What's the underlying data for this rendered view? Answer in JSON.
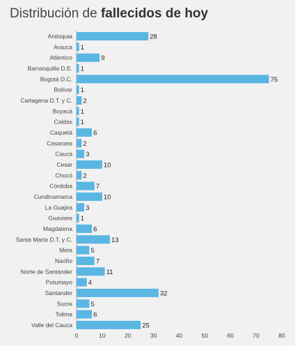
{
  "title": {
    "prefix": "Distribución de ",
    "bold": "fallecidos de hoy"
  },
  "colors": {
    "bar": "#5ab6e3",
    "background": "#f1f1f1",
    "text": "#444444",
    "axis": "#9a9a9a"
  },
  "chart_data": {
    "type": "bar",
    "orientation": "horizontal",
    "title": "Distribución de fallecidos de hoy",
    "xlabel": "",
    "ylabel": "",
    "xlim": [
      0,
      80
    ],
    "xticks": [
      "0",
      "10",
      "20",
      "30",
      "40",
      "50",
      "60",
      "70",
      "80"
    ],
    "grid": false,
    "legend": "none",
    "categories": [
      "Antioquia",
      "Arauca",
      "Atlántico",
      "Barranquilla D.E.",
      "Bogotá D.C.",
      "Bolívar",
      "Cartagena D.T. y C.",
      "Boyacá",
      "Caldas",
      "Caquetá",
      "Casanare",
      "Cauca",
      "Cesar",
      "Chocó",
      "Córdoba",
      "Cundinamarca",
      "La Guajira",
      "Guaviare",
      "Magdalena",
      "Santa Marta D.T. y C.",
      "Meta",
      "Nariño",
      "Norte de Santander",
      "Putumayo",
      "Santander",
      "Sucre",
      "Tolima",
      "Valle del Cauca"
    ],
    "values": [
      28,
      1,
      9,
      1,
      75,
      1,
      2,
      1,
      1,
      6,
      2,
      3,
      10,
      2,
      7,
      10,
      3,
      1,
      6,
      13,
      5,
      7,
      11,
      4,
      32,
      5,
      6,
      25
    ]
  }
}
